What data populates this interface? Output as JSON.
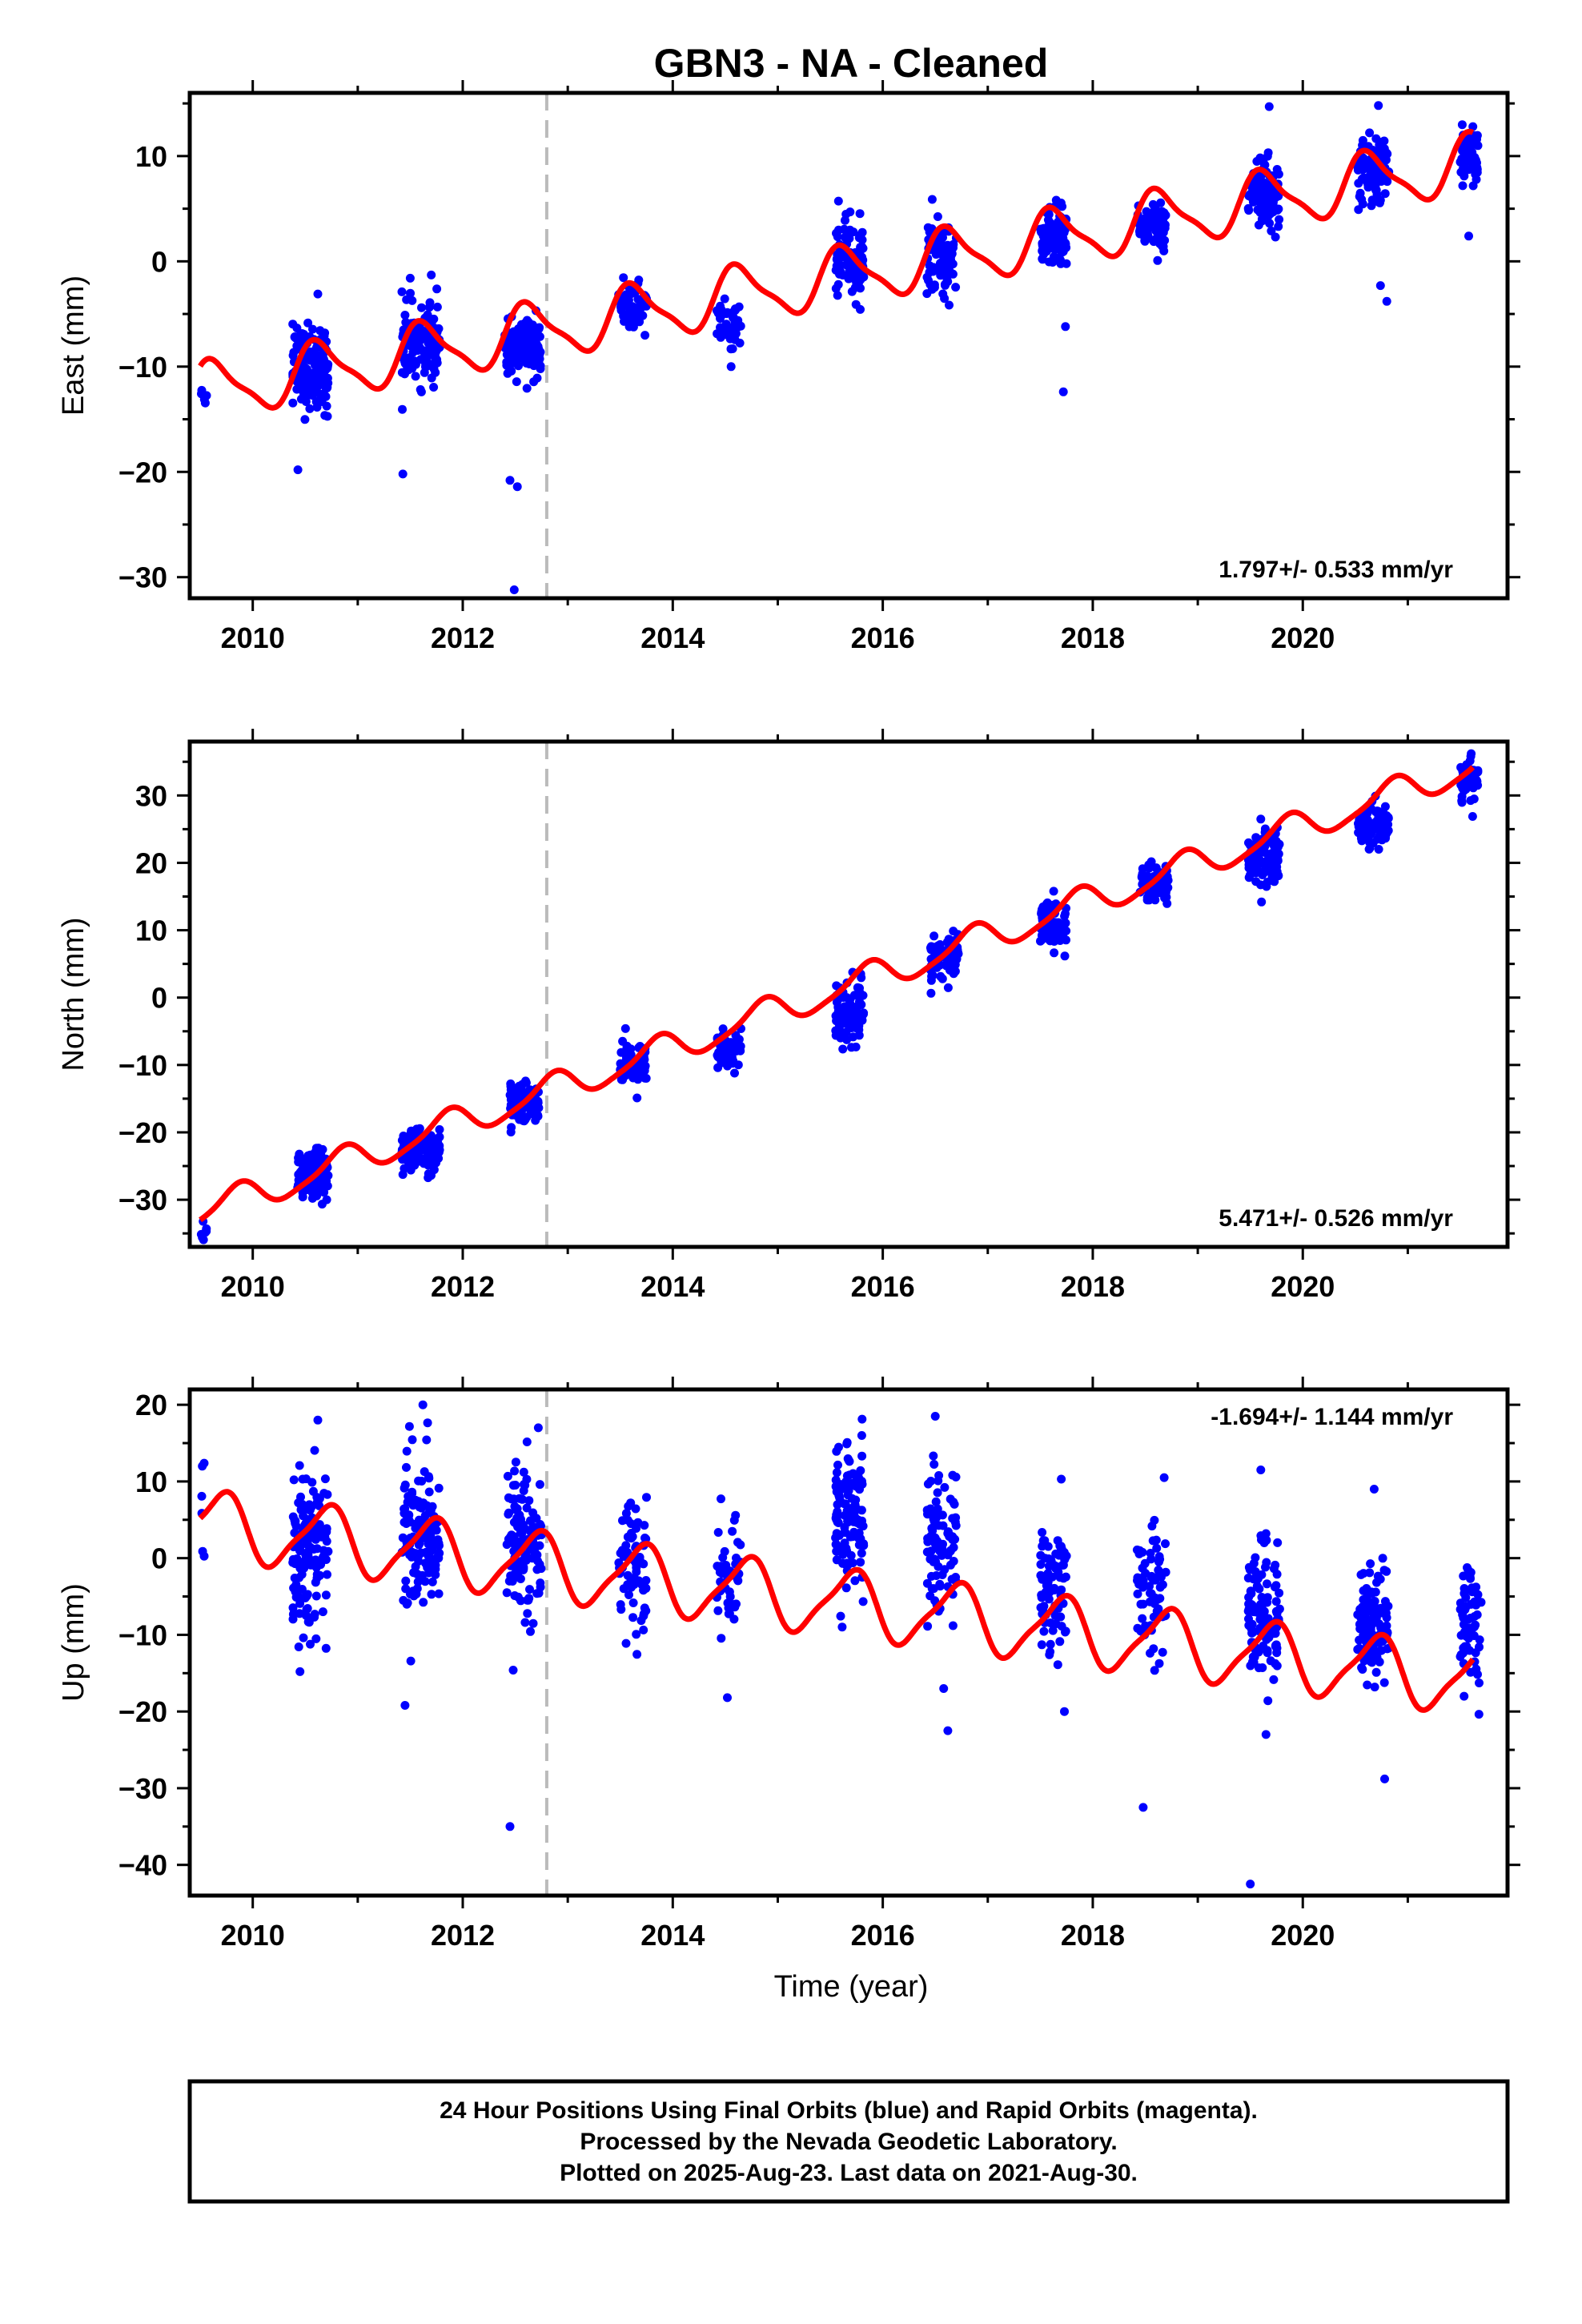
{
  "title": "GBN3  - NA - Cleaned",
  "xlabel": "Time (year)",
  "x_ticks": [
    2010,
    2012,
    2014,
    2016,
    2018,
    2020
  ],
  "x_tick_labels": [
    "2010",
    "2012",
    "2014",
    "2016",
    "2018",
    "2020"
  ],
  "footer": {
    "line1": "24 Hour Positions Using Final Orbits (blue) and Rapid Orbits (magenta).",
    "line2": "Processed by the Nevada Geodetic Laboratory.",
    "line3": "Plotted on 2025-Aug-23. Last data on 2021-Aug-30."
  },
  "colors": {
    "data": "#0000ff",
    "model": "#ff0000",
    "event_line": "#bbbbbb",
    "frame": "#000000"
  },
  "chart_data": [
    {
      "type": "scatter",
      "ylabel": "East (mm)",
      "xlim": [
        2009.4,
        2021.95
      ],
      "ylim": [
        -32,
        16
      ],
      "y_ticks": [
        10,
        0,
        -10,
        -20,
        -30
      ],
      "y_tick_labels": [
        "10",
        "0",
        "−10",
        "−20",
        "−30"
      ],
      "rate_text": "1.797+/- 0.533 mm/yr",
      "rate_position": "bottom-right",
      "event_line_x": 2012.8,
      "model": {
        "intercept": -12.4,
        "rate": 1.797,
        "annual_amp": 2.6,
        "annual_phase": 2009.38,
        "semiannual_amp": 0.7,
        "semiannual_phase": 2009.4,
        "origin": 2009.5
      },
      "campaigns": [
        {
          "x": 2009.53,
          "xr": [
            2009.5,
            2009.56
          ],
          "n": 6,
          "mean": -12.5,
          "sd": 0.6
        },
        {
          "x": 2010.55,
          "xr": [
            2010.38,
            2010.72
          ],
          "n": 150,
          "mean": -10.2,
          "sd": 2.0
        },
        {
          "x": 2011.6,
          "xr": [
            2011.42,
            2011.78
          ],
          "n": 140,
          "mean": -7.8,
          "sd": 1.8
        },
        {
          "x": 2012.55,
          "xr": [
            2012.4,
            2012.75
          ],
          "n": 120,
          "mean": -8.3,
          "sd": 1.3
        },
        {
          "x": 2013.6,
          "xr": [
            2013.48,
            2013.75
          ],
          "n": 70,
          "mean": -4.2,
          "sd": 1.1
        },
        {
          "x": 2014.55,
          "xr": [
            2014.42,
            2014.65
          ],
          "n": 45,
          "mean": -6.3,
          "sd": 1.3
        },
        {
          "x": 2015.68,
          "xr": [
            2015.55,
            2015.82
          ],
          "n": 100,
          "mean": 0.2,
          "sd": 1.8
        },
        {
          "x": 2016.55,
          "xr": [
            2016.42,
            2016.7
          ],
          "n": 90,
          "mean": 0.2,
          "sd": 1.8
        },
        {
          "x": 2017.62,
          "xr": [
            2017.5,
            2017.75
          ],
          "n": 90,
          "mean": 2.5,
          "sd": 1.3
        },
        {
          "x": 2018.55,
          "xr": [
            2018.42,
            2018.7
          ],
          "n": 80,
          "mean": 3.5,
          "sd": 1.2
        },
        {
          "x": 2019.62,
          "xr": [
            2019.48,
            2019.78
          ],
          "n": 100,
          "mean": 6.5,
          "sd": 1.6
        },
        {
          "x": 2020.65,
          "xr": [
            2020.52,
            2020.82
          ],
          "n": 100,
          "mean": 8.2,
          "sd": 1.8
        },
        {
          "x": 2021.58,
          "xr": [
            2021.5,
            2021.67
          ],
          "n": 60,
          "mean": 10.0,
          "sd": 1.4
        }
      ],
      "outliers": [
        [
          2010.43,
          -19.8
        ],
        [
          2011.43,
          -20.2
        ],
        [
          2012.45,
          -20.8
        ],
        [
          2012.52,
          -21.4
        ],
        [
          2012.49,
          -31.2
        ],
        [
          2017.72,
          -12.4
        ],
        [
          2017.74,
          -6.2
        ],
        [
          2020.8,
          -3.8
        ],
        [
          2020.74,
          -2.3
        ],
        [
          2020.72,
          14.8
        ],
        [
          2019.68,
          14.7
        ],
        [
          2011.5,
          -1.6
        ],
        [
          2011.7,
          -1.3
        ],
        [
          2010.62,
          -3.1
        ],
        [
          2021.58,
          2.4
        ],
        [
          2021.62,
          12.8
        ]
      ]
    },
    {
      "type": "scatter",
      "ylabel": "North (mm)",
      "xlim": [
        2009.4,
        2021.95
      ],
      "ylim": [
        -37,
        38
      ],
      "y_ticks": [
        30,
        20,
        10,
        0,
        -10,
        -20,
        -30
      ],
      "y_tick_labels": [
        "30",
        "20",
        "10",
        "0",
        "−10",
        "−20",
        "−30"
      ],
      "rate_text": "5.471+/- 0.526 mm/yr",
      "rate_position": "bottom-right",
      "event_line_x": 2012.8,
      "model": {
        "intercept": -32.0,
        "rate": 5.471,
        "annual_amp": 2.2,
        "annual_phase": 2009.6,
        "semiannual_amp": 0.5,
        "semiannual_phase": 2009.3,
        "origin": 2009.5
      },
      "campaigns": [
        {
          "x": 2009.53,
          "xr": [
            2009.5,
            2009.56
          ],
          "n": 6,
          "mean": -34.5,
          "sd": 0.8
        },
        {
          "x": 2010.55,
          "xr": [
            2010.42,
            2010.72
          ],
          "n": 130,
          "mean": -26.2,
          "sd": 1.7
        },
        {
          "x": 2011.6,
          "xr": [
            2011.42,
            2011.78
          ],
          "n": 120,
          "mean": -22.8,
          "sd": 1.5
        },
        {
          "x": 2012.6,
          "xr": [
            2012.45,
            2012.73
          ],
          "n": 100,
          "mean": -15.3,
          "sd": 1.4
        },
        {
          "x": 2013.6,
          "xr": [
            2013.5,
            2013.75
          ],
          "n": 60,
          "mean": -10.2,
          "sd": 1.6
        },
        {
          "x": 2014.55,
          "xr": [
            2014.42,
            2014.65
          ],
          "n": 45,
          "mean": -7.8,
          "sd": 1.6
        },
        {
          "x": 2015.68,
          "xr": [
            2015.55,
            2015.82
          ],
          "n": 100,
          "mean": -2.2,
          "sd": 2.2
        },
        {
          "x": 2016.58,
          "xr": [
            2016.45,
            2016.72
          ],
          "n": 80,
          "mean": 5.5,
          "sd": 2.0
        },
        {
          "x": 2017.62,
          "xr": [
            2017.5,
            2017.75
          ],
          "n": 70,
          "mean": 10.8,
          "sd": 2.0
        },
        {
          "x": 2018.58,
          "xr": [
            2018.45,
            2018.72
          ],
          "n": 70,
          "mean": 16.8,
          "sd": 1.6
        },
        {
          "x": 2019.62,
          "xr": [
            2019.48,
            2019.78
          ],
          "n": 100,
          "mean": 20.2,
          "sd": 2.0
        },
        {
          "x": 2020.68,
          "xr": [
            2020.52,
            2020.82
          ],
          "n": 100,
          "mean": 25.2,
          "sd": 1.5
        },
        {
          "x": 2021.58,
          "xr": [
            2021.5,
            2021.67
          ],
          "n": 60,
          "mean": 32.2,
          "sd": 1.6
        }
      ],
      "outliers": [
        [
          2009.52,
          -35.6
        ],
        [
          2021.6,
          35.8
        ],
        [
          2013.55,
          -4.6
        ],
        [
          2015.66,
          2.2
        ],
        [
          2019.6,
          26.5
        ]
      ]
    },
    {
      "type": "scatter",
      "ylabel": "Up (mm)",
      "xlim": [
        2009.4,
        2021.95
      ],
      "ylim": [
        -44,
        22
      ],
      "y_ticks": [
        20,
        10,
        0,
        -10,
        -20,
        -30,
        -40
      ],
      "y_tick_labels": [
        "20",
        "10",
        "0",
        "−10",
        "−20",
        "−30",
        "−40"
      ],
      "rate_text": "-1.694+/- 1.144 mm/yr",
      "rate_position": "top-right",
      "event_line_x": 2012.8,
      "model": {
        "intercept": 4.5,
        "rate": -1.694,
        "annual_amp": 4.2,
        "annual_phase": 2009.45,
        "semiannual_amp": 1.0,
        "semiannual_phase": 2009.2,
        "origin": 2009.5
      },
      "campaigns": [
        {
          "x": 2009.53,
          "xr": [
            2009.5,
            2009.56
          ],
          "n": 5,
          "mean": 6.0,
          "sd": 3.5
        },
        {
          "x": 2010.55,
          "xr": [
            2010.38,
            2010.72
          ],
          "n": 150,
          "mean": 1.5,
          "sd": 5.0
        },
        {
          "x": 2011.6,
          "xr": [
            2011.42,
            2011.78
          ],
          "n": 150,
          "mean": 3.5,
          "sd": 5.0
        },
        {
          "x": 2012.6,
          "xr": [
            2012.42,
            2012.75
          ],
          "n": 120,
          "mean": 2.0,
          "sd": 5.0
        },
        {
          "x": 2013.6,
          "xr": [
            2013.48,
            2013.75
          ],
          "n": 70,
          "mean": -0.5,
          "sd": 4.0
        },
        {
          "x": 2014.55,
          "xr": [
            2014.42,
            2014.65
          ],
          "n": 45,
          "mean": -2.0,
          "sd": 4.0
        },
        {
          "x": 2015.68,
          "xr": [
            2015.55,
            2015.82
          ],
          "n": 120,
          "mean": 5.0,
          "sd": 5.0
        },
        {
          "x": 2016.55,
          "xr": [
            2016.42,
            2016.7
          ],
          "n": 90,
          "mean": 2.0,
          "sd": 5.0
        },
        {
          "x": 2017.62,
          "xr": [
            2017.5,
            2017.75
          ],
          "n": 80,
          "mean": -3.5,
          "sd": 4.5
        },
        {
          "x": 2018.55,
          "xr": [
            2018.42,
            2018.7
          ],
          "n": 70,
          "mean": -5.0,
          "sd": 4.0
        },
        {
          "x": 2019.62,
          "xr": [
            2019.48,
            2019.78
          ],
          "n": 110,
          "mean": -7.5,
          "sd": 4.5
        },
        {
          "x": 2020.65,
          "xr": [
            2020.52,
            2020.82
          ],
          "n": 110,
          "mean": -9.0,
          "sd": 4.0
        },
        {
          "x": 2021.6,
          "xr": [
            2021.5,
            2021.7
          ],
          "n": 60,
          "mean": -8.0,
          "sd": 4.0
        }
      ],
      "outliers": [
        [
          2009.52,
          12.0
        ],
        [
          2010.45,
          -14.8
        ],
        [
          2011.45,
          -19.2
        ],
        [
          2012.45,
          -35.0
        ],
        [
          2012.48,
          -14.6
        ],
        [
          2016.58,
          -17.0
        ],
        [
          2016.62,
          -22.5
        ],
        [
          2017.73,
          -20.0
        ],
        [
          2018.48,
          -32.5
        ],
        [
          2019.5,
          -42.5
        ],
        [
          2019.65,
          -23.0
        ],
        [
          2020.78,
          -28.8
        ],
        [
          2014.52,
          -18.2
        ],
        [
          2016.5,
          18.5
        ],
        [
          2011.62,
          20.0
        ],
        [
          2010.62,
          18.0
        ],
        [
          2012.72,
          17.0
        ],
        [
          2019.6,
          11.5
        ],
        [
          2015.8,
          16.0
        ],
        [
          2017.7,
          10.3
        ],
        [
          2018.68,
          10.5
        ],
        [
          2020.68,
          9.0
        ]
      ]
    }
  ]
}
